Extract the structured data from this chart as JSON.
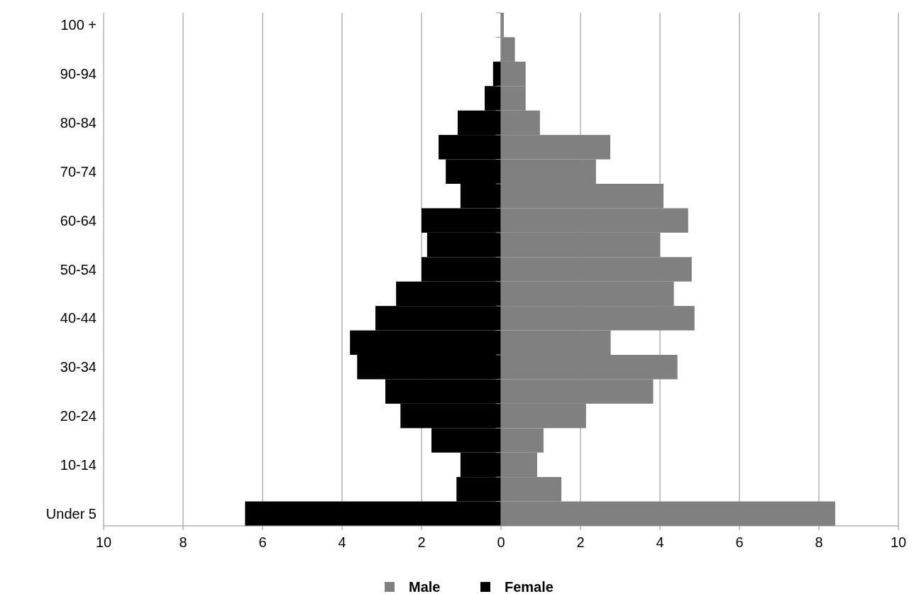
{
  "chart_data": {
    "type": "bar",
    "orientation": "horizontal",
    "stacked": true,
    "categories": [
      "100 +",
      null,
      "90-94",
      null,
      "80-84",
      null,
      "70-74",
      null,
      "60-64",
      null,
      "50-54",
      null,
      "40-44",
      null,
      "30-34",
      null,
      "20-24",
      null,
      "10-14",
      null,
      "Under 5"
    ],
    "series": [
      {
        "name": "Male",
        "color": "#808080",
        "values": [
          0.07,
          0.35,
          0.62,
          0.62,
          0.98,
          2.75,
          2.39,
          4.09,
          4.71,
          4.0,
          4.8,
          4.35,
          4.87,
          2.76,
          4.44,
          3.83,
          2.14,
          1.07,
          0.91,
          1.52,
          8.41
        ]
      },
      {
        "name": "Female",
        "color": "#000000",
        "values": [
          0,
          0,
          -0.2,
          -0.41,
          -1.09,
          -1.57,
          -1.39,
          -1.02,
          -2.0,
          -1.86,
          -2.0,
          -2.64,
          -3.16,
          -3.8,
          -3.62,
          -2.91,
          -2.53,
          -1.75,
          -1.02,
          -1.12,
          -6.44
        ]
      }
    ],
    "xlim": [
      -10,
      10
    ],
    "xticks": [
      {
        "value": -10,
        "label": "10"
      },
      {
        "value": -8,
        "label": "8"
      },
      {
        "value": -6,
        "label": "6"
      },
      {
        "value": -4,
        "label": "4"
      },
      {
        "value": -2,
        "label": "2"
      },
      0,
      2,
      4,
      6,
      8,
      10
    ],
    "grid": "x",
    "legend": "bottom"
  }
}
